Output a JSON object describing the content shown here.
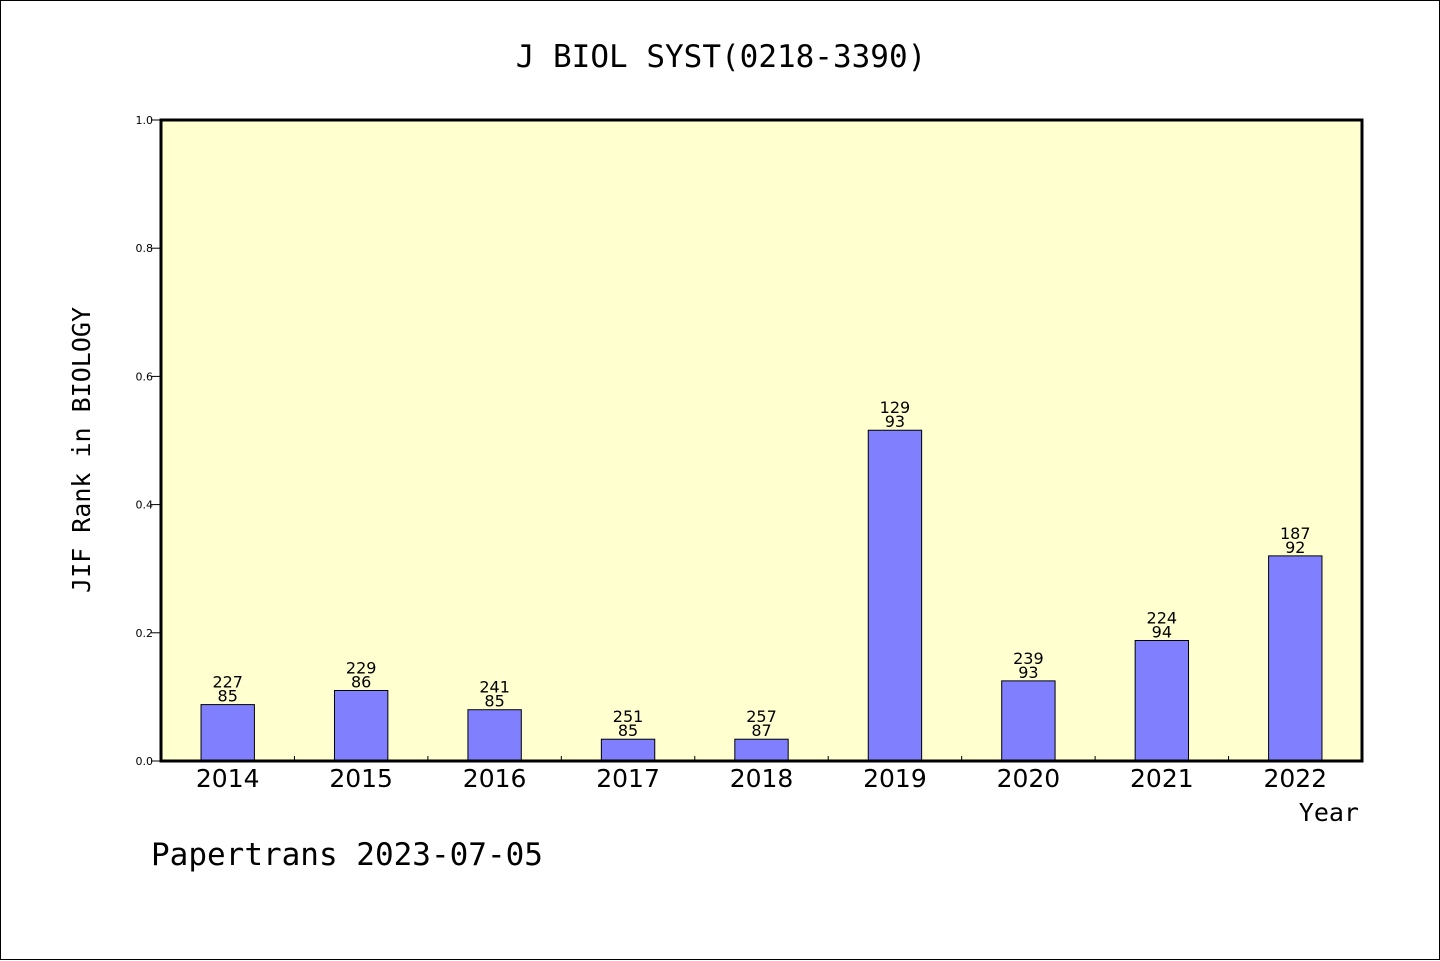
{
  "chart_data": {
    "type": "bar",
    "title": "J BIOL SYST(0218-3390)",
    "xlabel": "Year",
    "ylabel": "JIF Rank in BIOLOGY",
    "ylim": [
      0,
      1.0
    ],
    "yticks": [
      "0.0",
      "0.2",
      "0.4",
      "0.6",
      "0.8",
      "1.0"
    ],
    "categories": [
      "2014",
      "2015",
      "2016",
      "2017",
      "2018",
      "2019",
      "2020",
      "2021",
      "2022"
    ],
    "values": [
      0.088,
      0.11,
      0.08,
      0.034,
      0.034,
      0.516,
      0.125,
      0.188,
      0.32
    ],
    "labels_top": [
      "227",
      "229",
      "241",
      "251",
      "257",
      "129",
      "239",
      "224",
      "187"
    ],
    "labels_bottom": [
      "85",
      "86",
      "85",
      "85",
      "87",
      "93",
      "93",
      "94",
      "92"
    ],
    "grid": false,
    "colors": {
      "plot_background": "#ffffd0",
      "bar": "#8080ff",
      "axis": "#000000"
    }
  },
  "footer": {
    "watermark": "Papertrans 2023-07-05"
  }
}
